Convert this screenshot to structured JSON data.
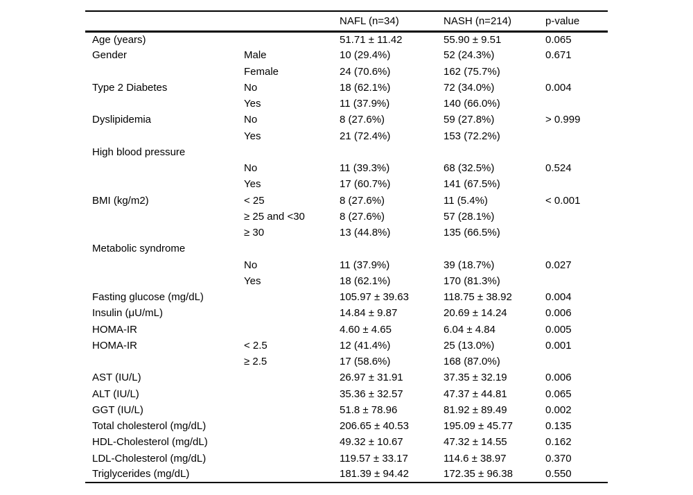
{
  "table": {
    "columns": [
      {
        "label": ""
      },
      {
        "label": ""
      },
      {
        "label": "NAFL (n=34)"
      },
      {
        "label": "NASH (n=214)"
      },
      {
        "label": "p-value"
      }
    ],
    "rows": [
      {
        "parameter": "Age (years)",
        "subcategory": "",
        "nafl": "51.71 ± 11.42",
        "nash": "55.90 ± 9.51",
        "p_value": "0.065"
      },
      {
        "parameter": "Gender",
        "subcategory": "Male",
        "nafl": "10 (29.4%)",
        "nash": "52 (24.3%)",
        "p_value": "0.671"
      },
      {
        "parameter": "",
        "subcategory": "Female",
        "nafl": "24 (70.6%)",
        "nash": "162 (75.7%)",
        "p_value": ""
      },
      {
        "parameter": "Type 2 Diabetes",
        "subcategory": "No",
        "nafl": "18 (62.1%)",
        "nash": "72 (34.0%)",
        "p_value": "0.004"
      },
      {
        "parameter": "",
        "subcategory": "Yes",
        "nafl": "11 (37.9%)",
        "nash": "140 (66.0%)",
        "p_value": ""
      },
      {
        "parameter": "Dyslipidemia",
        "subcategory": "No",
        "nafl": "8 (27.6%)",
        "nash": "59 (27.8%)",
        "p_value": "> 0.999"
      },
      {
        "parameter": "",
        "subcategory": "Yes",
        "nafl": "21 (72.4%)",
        "nash": "153 (72.2%)",
        "p_value": ""
      },
      {
        "parameter": "High blood pressure",
        "subcategory": "",
        "nafl": "",
        "nash": "",
        "p_value": ""
      },
      {
        "parameter": "",
        "subcategory": "No",
        "nafl": "11 (39.3%)",
        "nash": "68 (32.5%)",
        "p_value": "0.524"
      },
      {
        "parameter": "",
        "subcategory": "Yes",
        "nafl": "17 (60.7%)",
        "nash": "141 (67.5%)",
        "p_value": ""
      },
      {
        "parameter": "BMI (kg/m2)",
        "subcategory": "< 25",
        "nafl": "8 (27.6%)",
        "nash": "11 (5.4%)",
        "p_value": "< 0.001"
      },
      {
        "parameter": "",
        "subcategory": "≥ 25 and <30",
        "nafl": "8 (27.6%)",
        "nash": "57 (28.1%)",
        "p_value": ""
      },
      {
        "parameter": "",
        "subcategory": "≥ 30",
        "nafl": "13 (44.8%)",
        "nash": "135 (66.5%)",
        "p_value": ""
      },
      {
        "parameter": "Metabolic syndrome",
        "subcategory": "",
        "nafl": "",
        "nash": "",
        "p_value": ""
      },
      {
        "parameter": "",
        "subcategory": "No",
        "nafl": "11 (37.9%)",
        "nash": "39 (18.7%)",
        "p_value": "0.027"
      },
      {
        "parameter": "",
        "subcategory": "Yes",
        "nafl": "18 (62.1%)",
        "nash": "170 (81.3%)",
        "p_value": ""
      },
      {
        "parameter": "Fasting glucose (mg/dL)",
        "subcategory": "",
        "nafl": "105.97 ± 39.63",
        "nash": "118.75 ± 38.92",
        "p_value": "0.004"
      },
      {
        "parameter": "Insulin (μU/mL)",
        "subcategory": "",
        "nafl": "14.84 ± 9.87",
        "nash": "20.69 ± 14.24",
        "p_value": "0.006"
      },
      {
        "parameter": "HOMA-IR",
        "subcategory": "",
        "nafl": "4.60 ± 4.65",
        "nash": "6.04 ± 4.84",
        "p_value": "0.005"
      },
      {
        "parameter": "HOMA-IR",
        "subcategory": "< 2.5",
        "nafl": "12 (41.4%)",
        "nash": "25 (13.0%)",
        "p_value": "0.001"
      },
      {
        "parameter": "",
        "subcategory": "≥ 2.5",
        "nafl": "17 (58.6%)",
        "nash": "168 (87.0%)",
        "p_value": ""
      },
      {
        "parameter": "AST (IU/L)",
        "subcategory": "",
        "nafl": "26.97 ± 31.91",
        "nash": "37.35 ± 32.19",
        "p_value": "0.006"
      },
      {
        "parameter": "ALT (IU/L)",
        "subcategory": "",
        "nafl": "35.36 ± 32.57",
        "nash": "47.37 ± 44.81",
        "p_value": "0.065"
      },
      {
        "parameter": "GGT (IU/L)",
        "subcategory": "",
        "nafl": "51.8 ± 78.96",
        "nash": "81.92 ± 89.49",
        "p_value": "0.002"
      },
      {
        "parameter": "Total cholesterol (mg/dL)",
        "subcategory": "",
        "nafl": "206.65 ± 40.53",
        "nash": "195.09 ± 45.77",
        "p_value": "0.135"
      },
      {
        "parameter": "HDL-Cholesterol (mg/dL)",
        "subcategory": "",
        "nafl": "49.32 ± 10.67",
        "nash": "47.32 ± 14.55",
        "p_value": "0.162"
      },
      {
        "parameter": "LDL-Cholesterol (mg/dL)",
        "subcategory": "",
        "nafl": "119.57 ± 33.17",
        "nash": "114.6 ± 38.97",
        "p_value": "0.370"
      },
      {
        "parameter": "Triglycerides (mg/dL)",
        "subcategory": "",
        "nafl": "181.39 ± 94.42",
        "nash": "172.35 ± 96.38",
        "p_value": "0.550"
      }
    ]
  }
}
